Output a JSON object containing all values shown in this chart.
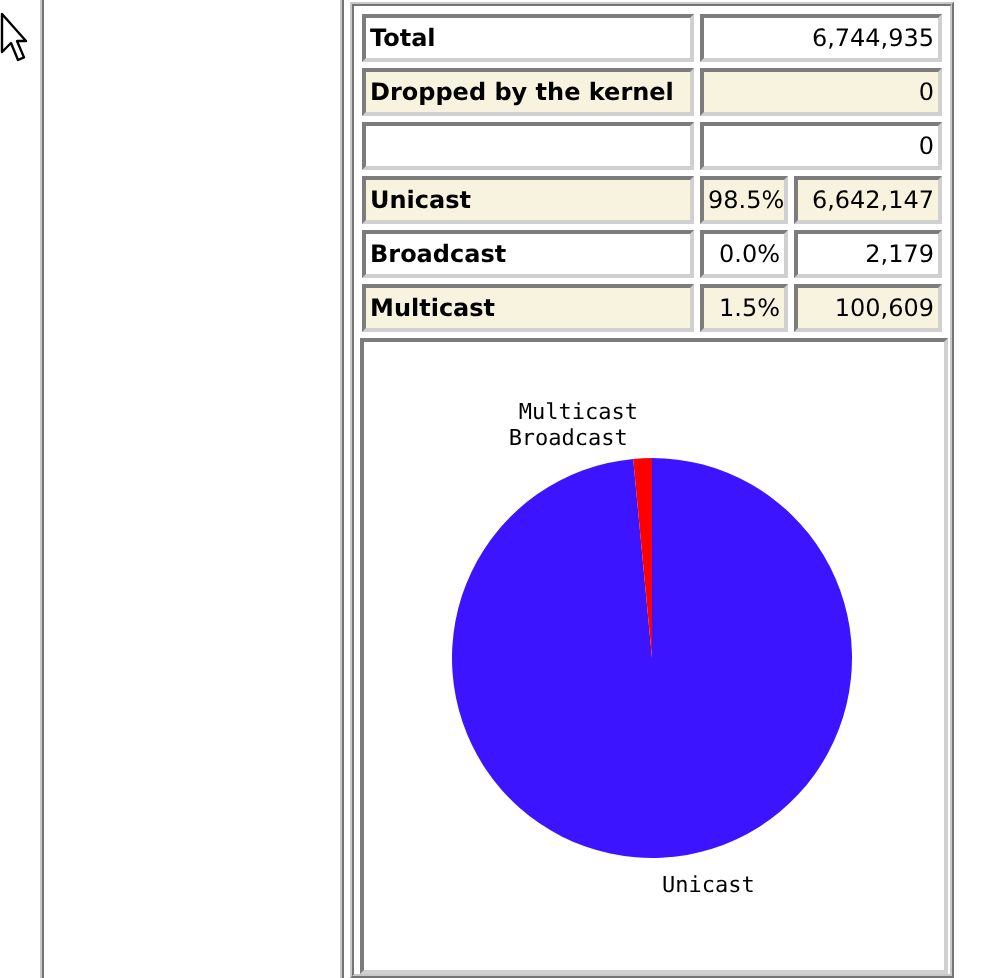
{
  "chart_data": [
    {
      "type": "other",
      "cell_labels": [
        [
          "Total",
          null,
          "6,744,935"
        ],
        [
          "Dropped by the kernel",
          null,
          "0"
        ],
        [
          null,
          null,
          "0"
        ],
        [
          "Unicast",
          "98.5%",
          "6,642,147"
        ],
        [
          "Broadcast",
          "0.0%",
          "2,179"
        ],
        [
          "Multicast",
          "1.5%",
          "100,609"
        ]
      ]
    },
    {
      "type": "pie",
      "categories": [
        "Unicast",
        "Broadcast",
        "Multicast"
      ],
      "values": [
        98.5,
        0.0,
        1.5
      ],
      "colors": [
        "#3c14ff",
        null,
        "#ff0000"
      ]
    }
  ]
}
